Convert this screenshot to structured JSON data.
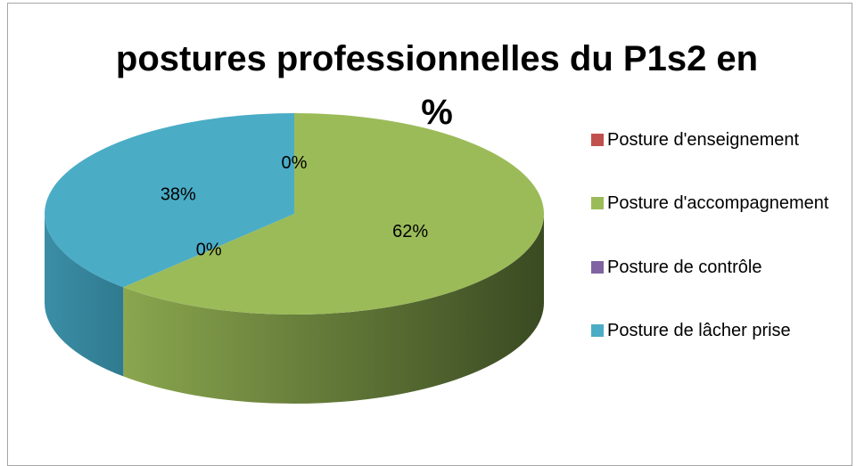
{
  "chart_data": {
    "type": "pie3d",
    "title": "postures professionnelles du P1s2 en %",
    "categories": [
      "Posture d'enseignement",
      "Posture d'accompagnement",
      "Posture de contrôle",
      "Posture de lâcher prise"
    ],
    "values": [
      0,
      62,
      0,
      38
    ],
    "value_labels": [
      "0%",
      "62%",
      "0%",
      "38%"
    ],
    "colors": [
      "#c0504d",
      "#9bbb59",
      "#8064a2",
      "#4bacc6"
    ],
    "legend": "right"
  }
}
